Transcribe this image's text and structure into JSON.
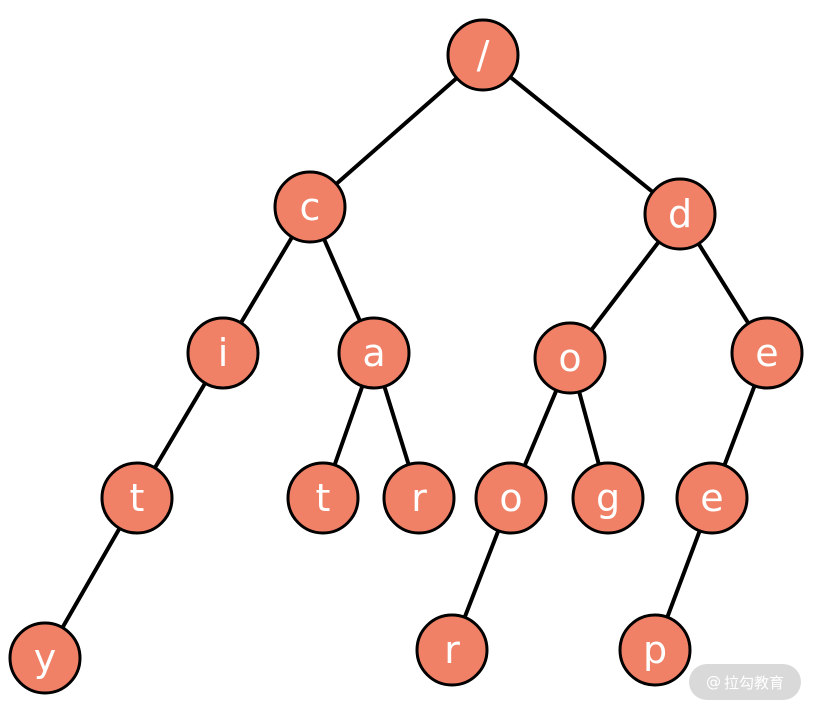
{
  "colors": {
    "node_fill": "#f08066",
    "edge": "#000000",
    "label": "#ffffff",
    "watermark_bg": "#d9d9d9"
  },
  "tree": {
    "nodes": [
      {
        "id": "root",
        "label": "/"
      },
      {
        "id": "c",
        "label": "c"
      },
      {
        "id": "d",
        "label": "d"
      },
      {
        "id": "i",
        "label": "i"
      },
      {
        "id": "a",
        "label": "a"
      },
      {
        "id": "o1",
        "label": "o"
      },
      {
        "id": "e1",
        "label": "e"
      },
      {
        "id": "t1",
        "label": "t"
      },
      {
        "id": "t2",
        "label": "t"
      },
      {
        "id": "r1",
        "label": "r"
      },
      {
        "id": "o2",
        "label": "o"
      },
      {
        "id": "g",
        "label": "g"
      },
      {
        "id": "e2",
        "label": "e"
      },
      {
        "id": "y",
        "label": "y"
      },
      {
        "id": "r2",
        "label": "r"
      },
      {
        "id": "p",
        "label": "p"
      }
    ],
    "edges": [
      [
        "root",
        "c"
      ],
      [
        "root",
        "d"
      ],
      [
        "c",
        "i"
      ],
      [
        "c",
        "a"
      ],
      [
        "d",
        "o1"
      ],
      [
        "d",
        "e1"
      ],
      [
        "i",
        "t1"
      ],
      [
        "a",
        "t2"
      ],
      [
        "a",
        "r1"
      ],
      [
        "o1",
        "o2"
      ],
      [
        "o1",
        "g"
      ],
      [
        "e1",
        "e2"
      ],
      [
        "t1",
        "y"
      ],
      [
        "o2",
        "r2"
      ],
      [
        "e2",
        "p"
      ]
    ]
  },
  "watermark": {
    "symbol": "@",
    "text": "拉勾教育"
  }
}
